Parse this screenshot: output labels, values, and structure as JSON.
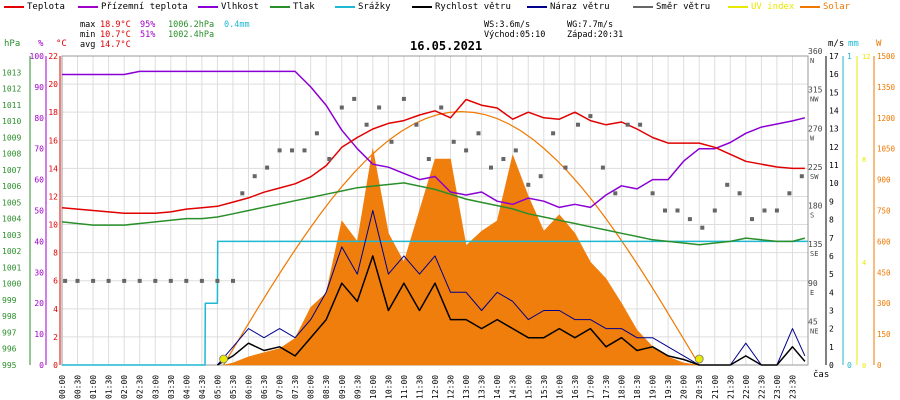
{
  "legend": [
    {
      "label": "Teplota",
      "color": "#e00000"
    },
    {
      "label": "Přízemní teplota",
      "color": "#a000c8"
    },
    {
      "label": "Vlhkost",
      "color": "#8a00d4"
    },
    {
      "label": "Tlak",
      "color": "#2a8f2a"
    },
    {
      "label": "Srážky",
      "color": "#1eb8d0"
    },
    {
      "label": "Rychlost větru",
      "color": "#000000"
    },
    {
      "label": "Náraz větru",
      "color": "#00008c"
    },
    {
      "label": "Směr větru",
      "color": "#666666"
    },
    {
      "label": "UV index",
      "color": "#e8e800"
    },
    {
      "label": "Solar",
      "color": "#f07800"
    }
  ],
  "stats": {
    "max_label": "max",
    "max_temp": "18.9°C",
    "max_hum": "95%",
    "max_press": "1006.2hPa",
    "max_rain": "0.4mm",
    "min_label": "min",
    "min_temp": "10.7°C",
    "min_hum": "51%",
    "min_press": "1002.4hPa",
    "avg_label": "avg",
    "avg_temp": "14.7°C",
    "ws": "WS:3.6m/s",
    "wg": "WG:7.7m/s",
    "sunrise": "Východ:05:10",
    "sunset": "Západ:20:31"
  },
  "date": "16.05.2021",
  "axis_titles": {
    "hpa": "hPa",
    "pct": "%",
    "degc": "°C",
    "ms": "m/s",
    "mm": "mm",
    "w": "W",
    "cas": "čas"
  },
  "colors": {
    "hpa_axis": "#2a8f2a",
    "pct_axis": "#a000c8",
    "degc_axis": "#e00000",
    "ms_axis": "#000000",
    "mm_axis": "#1eb8d0",
    "uv_axis": "#e8e800",
    "w_axis": "#f07800",
    "grid": "#dddddd"
  },
  "chart_data": {
    "type": "line",
    "title": "16.05.2021",
    "x_unit": "hours",
    "xlim": [
      0,
      24
    ],
    "x_tick_labels": [
      "00:00",
      "00:30",
      "01:00",
      "01:30",
      "02:00",
      "02:30",
      "03:00",
      "03:30",
      "04:00",
      "04:30",
      "05:00",
      "05:30",
      "06:00",
      "06:30",
      "07:00",
      "07:30",
      "08:00",
      "08:30",
      "09:00",
      "09:30",
      "10:00",
      "10:30",
      "11:00",
      "11:30",
      "12:00",
      "12:30",
      "13:00",
      "13:30",
      "14:00",
      "14:30",
      "15:00",
      "15:30",
      "16:00",
      "16:30",
      "17:00",
      "17:30",
      "18:00",
      "18:30",
      "19:00",
      "19:30",
      "20:00",
      "20:30",
      "21:00",
      "21:30",
      "22:00",
      "22:30",
      "23:00",
      "23:30"
    ],
    "axes": {
      "hpa": {
        "ylim": [
          995,
          1014
        ],
        "ticks": [
          995,
          996,
          997,
          998,
          999,
          1000,
          1001,
          1002,
          1003,
          1004,
          1005,
          1006,
          1007,
          1008,
          1009,
          1010,
          1011,
          1012,
          1013
        ]
      },
      "pct": {
        "ylim": [
          0,
          100
        ],
        "ticks": [
          0,
          10,
          20,
          30,
          40,
          50,
          60,
          70,
          80,
          90,
          100
        ]
      },
      "degc": {
        "ylim": [
          0,
          22
        ],
        "ticks": [
          0,
          2,
          4,
          6,
          8,
          10,
          12,
          14,
          16,
          18,
          20,
          22
        ]
      },
      "ms": {
        "ylim": [
          0,
          17
        ],
        "ticks": [
          0,
          1,
          2,
          3,
          4,
          5,
          6,
          7,
          8,
          9,
          10,
          11,
          12,
          13,
          14,
          15,
          16,
          17
        ]
      },
      "direction": {
        "ticks": [
          {
            "value": 45,
            "label": "45",
            "sub": "NE"
          },
          {
            "value": 90,
            "label": "90",
            "sub": "E"
          },
          {
            "value": 135,
            "label": "135",
            "sub": "SE"
          },
          {
            "value": 180,
            "label": "180",
            "sub": "S"
          },
          {
            "value": 225,
            "label": "225",
            "sub": "SW"
          },
          {
            "value": 270,
            "label": "270",
            "sub": "W"
          },
          {
            "value": 315,
            "label": "315",
            "sub": "NW"
          },
          {
            "value": 360,
            "label": "360",
            "sub": "N"
          }
        ]
      },
      "mm": {
        "ylim": [
          0,
          1
        ],
        "ticks": [
          0,
          1
        ]
      },
      "uv": {
        "ylim": [
          0,
          12
        ],
        "ticks": [
          0,
          4,
          8,
          12
        ]
      },
      "w": {
        "ylim": [
          0,
          1500
        ],
        "ticks": [
          0,
          150,
          300,
          450,
          600,
          750,
          900,
          1050,
          1200,
          1350,
          1500
        ]
      }
    },
    "series": [
      {
        "name": "Teplota",
        "axis": "degc",
        "x": [
          0,
          0.5,
          1,
          1.5,
          2,
          2.5,
          3,
          3.5,
          4,
          4.5,
          5,
          5.5,
          6,
          6.5,
          7,
          7.5,
          8,
          8.5,
          9,
          9.5,
          10,
          10.5,
          11,
          11.5,
          12,
          12.5,
          13,
          13.5,
          14,
          14.5,
          15,
          15.5,
          16,
          16.5,
          17,
          17.5,
          18,
          18.5,
          19,
          19.5,
          20,
          20.5,
          21,
          21.5,
          22,
          22.5,
          23,
          23.5,
          23.9
        ],
        "y": [
          11.2,
          11.1,
          11.0,
          10.9,
          10.8,
          10.8,
          10.8,
          10.9,
          11.1,
          11.2,
          11.3,
          11.6,
          11.9,
          12.3,
          12.6,
          12.9,
          13.4,
          14.2,
          15.5,
          16.2,
          16.8,
          17.2,
          17.4,
          17.8,
          18.1,
          17.6,
          18.9,
          18.5,
          18.3,
          17.5,
          18.0,
          17.6,
          17.5,
          18.0,
          17.4,
          17.1,
          17.3,
          16.8,
          16.2,
          15.8,
          15.8,
          15.8,
          15.5,
          15.0,
          14.5,
          14.3,
          14.1,
          14.0,
          14.0
        ]
      },
      {
        "name": "Vlhkost",
        "axis": "pct",
        "x": [
          0,
          0.5,
          1,
          1.5,
          2,
          2.5,
          3,
          3.5,
          4,
          4.5,
          5,
          5.5,
          6,
          6.5,
          7,
          7.5,
          8,
          8.5,
          9,
          9.5,
          10,
          10.5,
          11,
          11.5,
          12,
          12.5,
          13,
          13.5,
          14,
          14.5,
          15,
          15.5,
          16,
          16.5,
          17,
          17.5,
          18,
          18.5,
          19,
          19.5,
          20,
          20.5,
          21,
          21.5,
          22,
          22.5,
          23,
          23.5,
          23.9
        ],
        "y": [
          94,
          94,
          94,
          94,
          94,
          95,
          95,
          95,
          95,
          95,
          95,
          95,
          95,
          95,
          95,
          95,
          90,
          84,
          76,
          70,
          65,
          64,
          62,
          60,
          61,
          56,
          55,
          56,
          53,
          52,
          54,
          53,
          51,
          52,
          51,
          55,
          58,
          57,
          60,
          60,
          66,
          70,
          70,
          72,
          75,
          77,
          78,
          79,
          80
        ]
      },
      {
        "name": "Tlak",
        "axis": "hpa",
        "x": [
          0,
          0.5,
          1,
          1.5,
          2,
          2.5,
          3,
          3.5,
          4,
          4.5,
          5,
          5.5,
          6,
          6.5,
          7,
          7.5,
          8,
          8.5,
          9,
          9.5,
          10,
          10.5,
          11,
          11.5,
          12,
          12.5,
          13,
          13.5,
          14,
          14.5,
          15,
          15.5,
          16,
          16.5,
          17,
          17.5,
          18,
          18.5,
          19,
          19.5,
          20,
          20.5,
          21,
          21.5,
          22,
          22.5,
          23,
          23.5,
          23.9
        ],
        "y": [
          1003.8,
          1003.7,
          1003.6,
          1003.6,
          1003.6,
          1003.7,
          1003.8,
          1003.9,
          1004.0,
          1004.0,
          1004.1,
          1004.3,
          1004.5,
          1004.7,
          1004.9,
          1005.1,
          1005.3,
          1005.5,
          1005.7,
          1005.9,
          1006.0,
          1006.1,
          1006.2,
          1006.0,
          1005.8,
          1005.5,
          1005.2,
          1005.0,
          1004.8,
          1004.6,
          1004.3,
          1004.1,
          1003.9,
          1003.7,
          1003.5,
          1003.3,
          1003.1,
          1002.9,
          1002.7,
          1002.6,
          1002.5,
          1002.4,
          1002.5,
          1002.6,
          1002.8,
          1002.7,
          1002.6,
          1002.6,
          1002.8
        ]
      },
      {
        "name": "Srážky",
        "axis": "mm",
        "x": [
          0,
          4.6,
          4.61,
          5.0,
          5.01,
          5.5,
          5.51,
          24
        ],
        "y": [
          0,
          0,
          0.2,
          0.2,
          0.4,
          0.4,
          0.4,
          0.4
        ]
      },
      {
        "name": "Solar",
        "axis": "w",
        "x": [
          5.2,
          5.5,
          6,
          6.5,
          7,
          7.5,
          8,
          8.5,
          9,
          9.5,
          10,
          10.5,
          11,
          11.5,
          12,
          12.5,
          13,
          13.5,
          14,
          14.5,
          15,
          15.5,
          16,
          16.5,
          17,
          17.5,
          18,
          18.5,
          19,
          19.5,
          20,
          20.5
        ],
        "y": [
          0,
          10,
          40,
          60,
          80,
          130,
          280,
          350,
          700,
          600,
          1050,
          640,
          500,
          750,
          1000,
          1000,
          580,
          650,
          700,
          1020,
          820,
          650,
          730,
          640,
          500,
          420,
          300,
          170,
          90,
          40,
          10,
          0
        ]
      },
      {
        "name": "Rychlost větru",
        "axis": "ms",
        "x": [
          5,
          5.5,
          6,
          6.5,
          7,
          7.5,
          8,
          8.5,
          9,
          9.5,
          10,
          10.5,
          11,
          11.5,
          12,
          12.5,
          13,
          13.5,
          14,
          14.5,
          15,
          15.5,
          16,
          16.5,
          17,
          17.5,
          18,
          18.5,
          19,
          19.5,
          20,
          20.5,
          21,
          21.5,
          22,
          22.5,
          23,
          23.5,
          23.9
        ],
        "y": [
          0,
          0.5,
          1.2,
          0.8,
          1.0,
          0.5,
          1.5,
          2.5,
          4.5,
          3.5,
          6.0,
          3.0,
          4.5,
          3.0,
          4.5,
          2.5,
          2.5,
          2.0,
          2.5,
          2.0,
          1.5,
          1.5,
          2.0,
          1.5,
          2.0,
          1.0,
          1.5,
          0.8,
          1.0,
          0.5,
          0.3,
          0,
          0,
          0,
          0.5,
          0,
          0,
          1.0,
          0.2
        ]
      },
      {
        "name": "Náraz větru",
        "axis": "ms",
        "x": [
          5,
          5.5,
          6,
          6.5,
          7,
          7.5,
          8,
          8.5,
          9,
          9.5,
          10,
          10.5,
          11,
          11.5,
          12,
          12.5,
          13,
          13.5,
          14,
          14.5,
          15,
          15.5,
          16,
          16.5,
          17,
          17.5,
          18,
          18.5,
          19,
          19.5,
          20,
          20.5,
          21,
          21.5,
          22,
          22.5,
          23,
          23.5,
          23.9
        ],
        "y": [
          0,
          1.0,
          2.0,
          1.5,
          2.0,
          1.5,
          2.5,
          4.0,
          6.5,
          5.0,
          8.5,
          5.0,
          6.0,
          5.0,
          6.0,
          4.0,
          4.0,
          3.0,
          4.0,
          3.5,
          2.5,
          3.0,
          3.0,
          2.5,
          2.5,
          2.0,
          2.0,
          1.5,
          1.5,
          1.0,
          0.5,
          0,
          0,
          0,
          1.2,
          0,
          0,
          2.0,
          0.5
        ]
      },
      {
        "name": "Směr větru",
        "axis": "direction",
        "type": "scatter",
        "x": [
          0.1,
          0.5,
          1.0,
          1.5,
          2.0,
          2.5,
          3.0,
          3.5,
          4.0,
          4.5,
          5.0,
          5.5,
          5.8,
          6.2,
          6.6,
          7.0,
          7.4,
          7.8,
          8.2,
          8.6,
          9.0,
          9.4,
          9.8,
          10.2,
          10.6,
          11.0,
          11.4,
          11.8,
          12.2,
          12.6,
          13.0,
          13.4,
          13.8,
          14.2,
          14.6,
          15.0,
          15.4,
          15.8,
          16.2,
          16.6,
          17.0,
          17.4,
          17.8,
          18.2,
          18.6,
          19.0,
          19.4,
          19.8,
          20.2,
          20.6,
          21.0,
          21.4,
          21.8,
          22.2,
          22.6,
          23.0,
          23.4,
          23.8
        ],
        "y": [
          98,
          98,
          98,
          98,
          98,
          98,
          98,
          98,
          98,
          98,
          98,
          98,
          200,
          220,
          230,
          250,
          250,
          250,
          270,
          240,
          300,
          310,
          280,
          300,
          260,
          310,
          280,
          240,
          300,
          260,
          250,
          270,
          230,
          240,
          250,
          210,
          220,
          270,
          230,
          280,
          290,
          230,
          200,
          280,
          280,
          200,
          180,
          180,
          170,
          160,
          180,
          210,
          200,
          170,
          180,
          180,
          200,
          220
        ]
      },
      {
        "name": "UV index",
        "axis": "uv",
        "type": "scatter",
        "x": [
          5.2,
          20.5
        ],
        "y": [
          0,
          0
        ]
      }
    ]
  }
}
